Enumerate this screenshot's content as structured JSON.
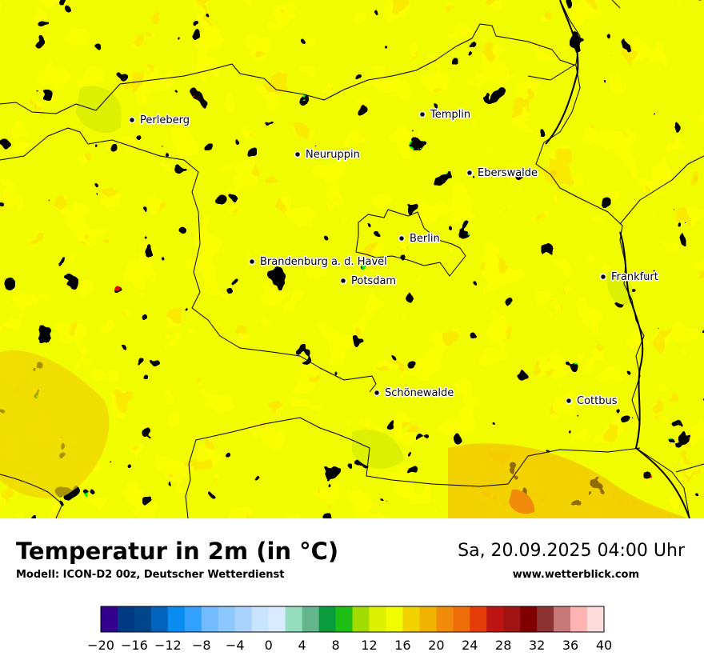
{
  "title": "Temperatur in 2m (in °C)",
  "model": "Modell: ICON-D2 00z, Deutscher Wetterdienst",
  "datetime": "Sa, 20.09.2025 04:00 Uhr",
  "website": "www.wetterblick.com",
  "map": {
    "base_color": "#f2fc00",
    "cities": [
      {
        "name": "Perleberg"
      },
      {
        "name": "Templin"
      },
      {
        "name": "Neuruppin"
      },
      {
        "name": "Eberswalde"
      },
      {
        "name": "Berlin"
      },
      {
        "name": "Brandenburg a. d. Havel"
      },
      {
        "name": "Potsdam"
      },
      {
        "name": "Frankfurt"
      },
      {
        "name": "Schönewalde"
      },
      {
        "name": "Cottbus"
      }
    ]
  },
  "legend": {
    "min": -20,
    "max": 40,
    "step": 2,
    "tick_labels": [
      "−20",
      "−16",
      "−12",
      "−8",
      "−4",
      "0",
      "4",
      "8",
      "12",
      "16",
      "20",
      "24",
      "28",
      "32",
      "36",
      "40"
    ],
    "colors": [
      "#32008c",
      "#003a82",
      "#00468c",
      "#0064be",
      "#0a8cf0",
      "#32a0ff",
      "#73bbff",
      "#8cc8ff",
      "#aad4ff",
      "#c8e4ff",
      "#d9ebff",
      "#96dcbe",
      "#64b48c",
      "#0a9b3c",
      "#1ebe14",
      "#a0dc00",
      "#dcf000",
      "#f2fc00",
      "#f0d200",
      "#f0b400",
      "#f08c0a",
      "#f06e0a",
      "#e63c0a",
      "#be1414",
      "#a01414",
      "#800000",
      "#8c3232",
      "#c87878",
      "#ffb4b4",
      "#ffdcdc"
    ]
  }
}
